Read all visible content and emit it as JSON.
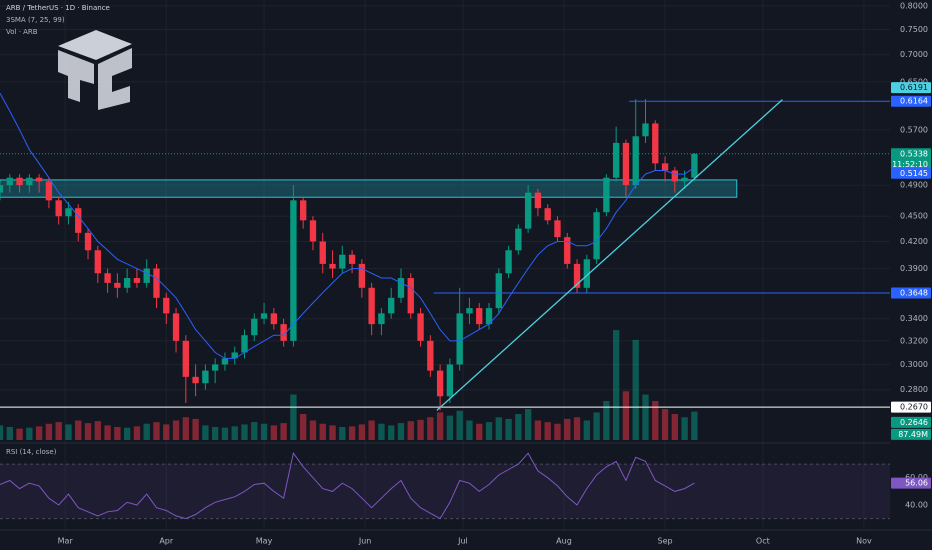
{
  "chart_data": {
    "type": "candlestick",
    "title": "ARB / TetherUS · 1D · Binance",
    "indicators": [
      "3SMA (7, 25, 99)",
      "Vol · ARB"
    ],
    "log": true,
    "grid": true,
    "up_color": "#089981",
    "down_color": "#f23645",
    "xlim": [
      -20,
      253
    ],
    "xticks": [
      {
        "value": 0,
        "label": "Mar"
      },
      {
        "value": 31,
        "label": "Apr"
      },
      {
        "value": 61,
        "label": "May"
      },
      {
        "value": 92,
        "label": "Jun"
      },
      {
        "value": 122,
        "label": "Jul"
      },
      {
        "value": 153,
        "label": "Aug"
      },
      {
        "value": 184,
        "label": "Sep"
      },
      {
        "value": 214,
        "label": "Oct"
      },
      {
        "value": 245,
        "label": "Nov"
      }
    ],
    "ylim": [
      0.244,
      0.813
    ],
    "yticks": [
      {
        "value": 0.8,
        "label": "0.8000"
      },
      {
        "value": 0.75,
        "label": "0.7500"
      },
      {
        "value": 0.7,
        "label": "0.7000"
      },
      {
        "value": 0.65,
        "label": "0.6500"
      },
      {
        "value": 0.57,
        "label": "0.5700"
      },
      {
        "value": 0.49,
        "label": "0.4900"
      },
      {
        "value": 0.45,
        "label": "0.4500"
      },
      {
        "value": 0.42,
        "label": "0.4200"
      },
      {
        "value": 0.39,
        "label": "0.3900"
      },
      {
        "value": 0.34,
        "label": "0.3400"
      },
      {
        "value": 0.32,
        "label": "0.3200"
      },
      {
        "value": 0.3,
        "label": "0.3000"
      },
      {
        "value": 0.28,
        "label": "0.2800"
      }
    ],
    "x": [
      -20,
      -17,
      -14,
      -11,
      -8,
      -5,
      -2,
      1,
      4,
      7,
      10,
      13,
      16,
      19,
      22,
      25,
      28,
      31,
      34,
      37,
      40,
      43,
      46,
      49,
      52,
      55,
      58,
      61,
      64,
      67,
      70,
      73,
      76,
      79,
      82,
      85,
      88,
      91,
      94,
      97,
      100,
      103,
      106,
      109,
      112,
      115,
      118,
      121,
      124,
      127,
      130,
      133,
      136,
      139,
      142,
      145,
      148,
      151,
      154,
      157,
      160,
      163,
      166,
      169,
      172,
      175,
      178,
      181,
      184,
      187,
      190,
      193
    ],
    "open": [
      0.48,
      0.49,
      0.5,
      0.49,
      0.5,
      0.495,
      0.47,
      0.45,
      0.46,
      0.43,
      0.41,
      0.385,
      0.375,
      0.37,
      0.38,
      0.375,
      0.39,
      0.36,
      0.345,
      0.32,
      0.29,
      0.285,
      0.295,
      0.3,
      0.305,
      0.31,
      0.325,
      0.34,
      0.345,
      0.335,
      0.32,
      0.47,
      0.445,
      0.42,
      0.395,
      0.39,
      0.405,
      0.395,
      0.37,
      0.335,
      0.345,
      0.36,
      0.38,
      0.345,
      0.32,
      0.295,
      0.275,
      0.3,
      0.345,
      0.35,
      0.335,
      0.35,
      0.385,
      0.41,
      0.435,
      0.48,
      0.46,
      0.445,
      0.425,
      0.395,
      0.37,
      0.4,
      0.455,
      0.5,
      0.55,
      0.49,
      0.56,
      0.58,
      0.52,
      0.51,
      0.495,
      0.5
    ],
    "high": [
      0.495,
      0.505,
      0.505,
      0.505,
      0.505,
      0.5,
      0.475,
      0.468,
      0.465,
      0.435,
      0.415,
      0.39,
      0.385,
      0.39,
      0.39,
      0.4,
      0.395,
      0.365,
      0.35,
      0.325,
      0.3,
      0.3,
      0.305,
      0.31,
      0.315,
      0.33,
      0.345,
      0.355,
      0.35,
      0.34,
      0.49,
      0.475,
      0.45,
      0.43,
      0.41,
      0.415,
      0.41,
      0.4,
      0.375,
      0.35,
      0.37,
      0.39,
      0.385,
      0.35,
      0.325,
      0.3,
      0.305,
      0.37,
      0.36,
      0.355,
      0.355,
      0.39,
      0.415,
      0.44,
      0.49,
      0.485,
      0.465,
      0.45,
      0.43,
      0.4,
      0.405,
      0.46,
      0.505,
      0.575,
      0.555,
      0.62,
      0.62,
      0.585,
      0.53,
      0.515,
      0.51,
      0.535
    ],
    "low": [
      0.47,
      0.48,
      0.48,
      0.48,
      0.48,
      0.46,
      0.44,
      0.44,
      0.42,
      0.4,
      0.375,
      0.365,
      0.36,
      0.365,
      0.37,
      0.37,
      0.35,
      0.335,
      0.31,
      0.27,
      0.275,
      0.28,
      0.285,
      0.295,
      0.3,
      0.305,
      0.32,
      0.335,
      0.33,
      0.315,
      0.315,
      0.435,
      0.41,
      0.385,
      0.38,
      0.385,
      0.385,
      0.36,
      0.325,
      0.325,
      0.34,
      0.355,
      0.34,
      0.315,
      0.29,
      0.2646,
      0.27,
      0.295,
      0.335,
      0.33,
      0.33,
      0.345,
      0.38,
      0.405,
      0.43,
      0.45,
      0.44,
      0.42,
      0.39,
      0.365,
      0.365,
      0.395,
      0.45,
      0.495,
      0.475,
      0.485,
      0.55,
      0.51,
      0.495,
      0.48,
      0.485,
      0.495
    ],
    "close": [
      0.49,
      0.5,
      0.49,
      0.5,
      0.495,
      0.47,
      0.45,
      0.46,
      0.43,
      0.41,
      0.385,
      0.375,
      0.37,
      0.38,
      0.375,
      0.39,
      0.36,
      0.345,
      0.32,
      0.29,
      0.285,
      0.295,
      0.3,
      0.305,
      0.31,
      0.325,
      0.34,
      0.345,
      0.335,
      0.32,
      0.47,
      0.445,
      0.42,
      0.395,
      0.39,
      0.405,
      0.395,
      0.37,
      0.335,
      0.345,
      0.36,
      0.38,
      0.345,
      0.32,
      0.295,
      0.275,
      0.3,
      0.345,
      0.35,
      0.335,
      0.35,
      0.385,
      0.41,
      0.435,
      0.48,
      0.46,
      0.445,
      0.425,
      0.395,
      0.37,
      0.4,
      0.455,
      0.5,
      0.55,
      0.49,
      0.56,
      0.58,
      0.52,
      0.51,
      0.495,
      0.5,
      0.5338
    ],
    "countdown": "11:52:10",
    "sma": {
      "color": "#2962ff",
      "values": [
        0.63,
        0.6,
        0.57,
        0.54,
        0.52,
        0.5,
        0.48,
        0.465,
        0.45,
        0.435,
        0.42,
        0.41,
        0.4,
        0.395,
        0.39,
        0.385,
        0.38,
        0.37,
        0.36,
        0.345,
        0.33,
        0.32,
        0.31,
        0.305,
        0.305,
        0.31,
        0.315,
        0.32,
        0.325,
        0.325,
        0.335,
        0.345,
        0.355,
        0.365,
        0.375,
        0.385,
        0.39,
        0.39,
        0.385,
        0.38,
        0.38,
        0.375,
        0.37,
        0.36,
        0.345,
        0.33,
        0.32,
        0.32,
        0.325,
        0.33,
        0.335,
        0.345,
        0.36,
        0.375,
        0.39,
        0.405,
        0.415,
        0.42,
        0.42,
        0.415,
        0.415,
        0.42,
        0.435,
        0.455,
        0.47,
        0.49,
        0.505,
        0.51,
        0.51,
        0.505,
        0.505,
        0.5145
      ]
    },
    "volume": {
      "ylim": [
        0,
        400
      ],
      "last_label": "87.49M",
      "values": [
        45,
        40,
        35,
        38,
        42,
        50,
        55,
        48,
        60,
        52,
        58,
        45,
        40,
        38,
        42,
        50,
        55,
        48,
        60,
        70,
        65,
        45,
        40,
        38,
        42,
        48,
        55,
        50,
        45,
        52,
        140,
        80,
        60,
        50,
        45,
        40,
        42,
        48,
        60,
        50,
        45,
        52,
        58,
        62,
        70,
        85,
        75,
        90,
        60,
        50,
        55,
        70,
        65,
        80,
        95,
        60,
        55,
        50,
        65,
        70,
        60,
        85,
        120,
        338,
        150,
        308,
        140,
        120,
        95,
        80,
        70,
        87.49
      ]
    },
    "zone": {
      "color": "#26c6da",
      "x": [
        -20,
        206
      ],
      "y": [
        0.474,
        0.497
      ]
    },
    "trendline": {
      "color": "#4dd0e1",
      "x": [
        114,
        220
      ],
      "y": [
        0.2646,
        0.6191
      ]
    },
    "levels": [
      {
        "value": 0.6164,
        "from": 173,
        "color": "#2962ff"
      },
      {
        "value": 0.3648,
        "from": 113,
        "color": "#2962ff"
      },
      {
        "value": 0.267,
        "label": "0.2670",
        "from": -20,
        "color": "#ffffff"
      }
    ],
    "rsi": {
      "title": "RSI (14, close)",
      "color": "#7e57c2",
      "ylim": [
        29,
        84
      ],
      "band": [
        30,
        70
      ],
      "yticks": [
        {
          "value": 40,
          "label": "40.00"
        },
        {
          "value": 60,
          "label": "60.00"
        }
      ],
      "values": [
        55,
        58,
        52,
        56,
        54,
        45,
        40,
        48,
        38,
        35,
        32,
        35,
        36,
        42,
        40,
        48,
        38,
        36,
        32,
        30,
        33,
        38,
        42,
        44,
        46,
        50,
        55,
        56,
        50,
        45,
        78,
        68,
        60,
        52,
        50,
        56,
        52,
        45,
        38,
        45,
        52,
        58,
        45,
        38,
        34,
        30,
        42,
        58,
        56,
        50,
        55,
        62,
        66,
        70,
        78,
        65,
        60,
        54,
        46,
        40,
        52,
        62,
        68,
        72,
        58,
        75,
        72,
        58,
        54,
        50,
        52,
        56.06
      ]
    }
  }
}
